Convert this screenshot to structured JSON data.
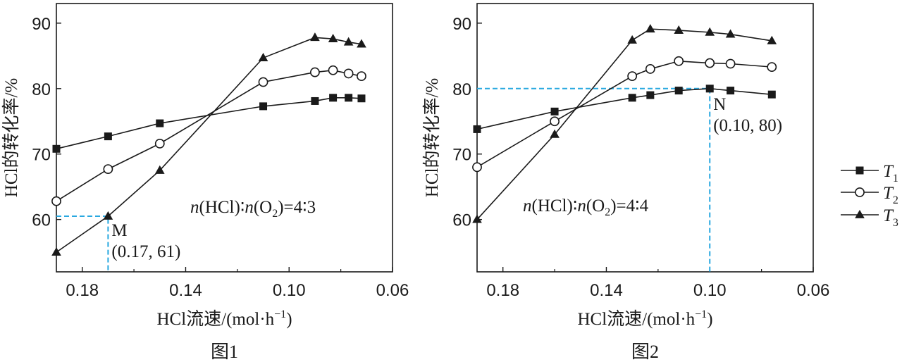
{
  "chart_data": [
    {
      "type": "line",
      "caption": "图1",
      "xlabel": "HCl流速/(mol·h",
      "xlabel_sup": "−1",
      "xlabel_end": ")",
      "ylabel": "HCl的转化率/%",
      "xlim": [
        0.06,
        0.19
      ],
      "x_reversed": true,
      "ylim": [
        52,
        93
      ],
      "xticks": [
        "0.18",
        "0.14",
        "0.10",
        "0.06"
      ],
      "yticks": [
        "60",
        "70",
        "80",
        "90"
      ],
      "ratio_label": {
        "n1": "n",
        "mid": "(HCl)∶",
        "n2": "n",
        "tail": "(O",
        "sub": "2",
        "end": ")=4∶3"
      },
      "series": [
        {
          "name": "T1",
          "marker": "square",
          "x": [
            0.19,
            0.17,
            0.15,
            0.11,
            0.09,
            0.083,
            0.077,
            0.072
          ],
          "y": [
            70.8,
            72.7,
            74.7,
            77.3,
            78.1,
            78.6,
            78.6,
            78.5
          ]
        },
        {
          "name": "T2",
          "marker": "circle",
          "x": [
            0.19,
            0.17,
            0.15,
            0.11,
            0.09,
            0.083,
            0.077,
            0.072
          ],
          "y": [
            62.8,
            67.7,
            71.6,
            81.0,
            82.5,
            82.8,
            82.3,
            81.9
          ]
        },
        {
          "name": "T3",
          "marker": "triangle",
          "x": [
            0.19,
            0.17,
            0.15,
            0.11,
            0.09,
            0.083,
            0.077,
            0.072
          ],
          "y": [
            55.0,
            60.5,
            67.5,
            84.7,
            87.8,
            87.6,
            87.1,
            86.8
          ]
        }
      ],
      "annotation": {
        "label": "M",
        "coords": "(0.17, 61)",
        "x": 0.17,
        "y": 60.5
      }
    },
    {
      "type": "line",
      "caption": "图2",
      "xlabel": "HCl流速/(mol·h",
      "xlabel_sup": "−1",
      "xlabel_end": ")",
      "ylabel": "HCl的转化率/%",
      "xlim": [
        0.06,
        0.19
      ],
      "x_reversed": true,
      "ylim": [
        52,
        93
      ],
      "xticks": [
        "0.18",
        "0.14",
        "0.10",
        "0.06"
      ],
      "yticks": [
        "60",
        "70",
        "80",
        "90"
      ],
      "ratio_label": {
        "n1": "n",
        "mid": "(HCl)∶",
        "n2": "n",
        "tail": "(O",
        "sub": "2",
        "end": ")=4∶4"
      },
      "series": [
        {
          "name": "T1",
          "marker": "square",
          "x": [
            0.19,
            0.16,
            0.13,
            0.123,
            0.112,
            0.1,
            0.092,
            0.076
          ],
          "y": [
            73.8,
            76.5,
            78.6,
            79.0,
            79.7,
            80.0,
            79.7,
            79.1
          ]
        },
        {
          "name": "T2",
          "marker": "circle",
          "x": [
            0.19,
            0.16,
            0.13,
            0.123,
            0.112,
            0.1,
            0.092,
            0.076
          ],
          "y": [
            68.0,
            75.0,
            81.9,
            83.0,
            84.2,
            83.9,
            83.8,
            83.3
          ]
        },
        {
          "name": "T3",
          "marker": "triangle",
          "x": [
            0.19,
            0.16,
            0.13,
            0.123,
            0.112,
            0.1,
            0.092,
            0.076
          ],
          "y": [
            60.0,
            73.0,
            87.4,
            89.1,
            88.9,
            88.6,
            88.3,
            87.3
          ]
        }
      ],
      "annotation": {
        "label": "N",
        "coords": "(0.10, 80)",
        "x": 0.1,
        "y": 80
      }
    }
  ],
  "legend": [
    {
      "name": "T",
      "sub": "1",
      "marker": "square"
    },
    {
      "name": "T",
      "sub": "2",
      "marker": "circle"
    },
    {
      "name": "T",
      "sub": "3",
      "marker": "triangle"
    }
  ],
  "colors": {
    "line": "#1a1a1a",
    "guide": "#29a8e0",
    "background": "#ffffff"
  }
}
